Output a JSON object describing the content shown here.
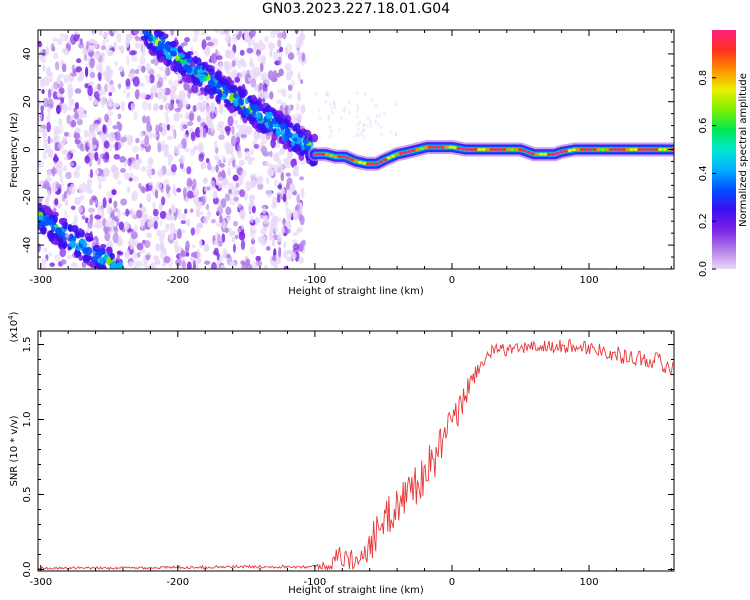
{
  "title": "GN03.2023.227.18.01.G04",
  "chart_data": [
    {
      "type": "heatmap",
      "xlabel": "Height of straight line (km)",
      "ylabel": "Frequency (Hz)",
      "xlim": [
        -302,
        162
      ],
      "ylim": [
        -50,
        50
      ],
      "x_ticks": [
        -300,
        -200,
        -100,
        0,
        100
      ],
      "y_ticks": [
        -40,
        -20,
        0,
        20,
        40
      ],
      "ridge_primary": {
        "x": [
          -100,
          -92,
          -85,
          -78,
          -70,
          -62,
          -55,
          -48,
          -40,
          -32,
          -25,
          -18,
          -10,
          0,
          10,
          20,
          30,
          40,
          50,
          55,
          60,
          65,
          70,
          75,
          80,
          90,
          100,
          110,
          120,
          130,
          140,
          150,
          160
        ],
        "y": [
          -2,
          -2,
          -3,
          -3,
          -5,
          -6,
          -6,
          -4,
          -2,
          -1,
          0,
          1,
          1,
          1,
          0,
          0,
          0,
          0,
          0,
          -1,
          -2,
          -2,
          -2,
          -2,
          -1,
          0,
          0,
          0,
          0,
          0,
          0,
          0,
          0
        ]
      },
      "ridge_descending_upper": {
        "x": [
          -225,
          -200,
          -180,
          -160,
          -140,
          -125,
          -110,
          -100
        ],
        "y": [
          50,
          38,
          30,
          22,
          14,
          9,
          3,
          -1
        ]
      },
      "ridge_descending_lower": {
        "x": [
          -302,
          -285,
          -270,
          -255,
          -240
        ],
        "y": [
          -28,
          -35,
          -40,
          -46,
          -52
        ]
      },
      "colorbar": {
        "label": "Normalized spectral amplitude",
        "ticks": [
          "0.0",
          "0.2",
          "0.4",
          "0.6",
          "0.8"
        ],
        "range": [
          0,
          1
        ],
        "colors": [
          "#e8d8f8",
          "#b07ae8",
          "#7a20e8",
          "#3a10f0",
          "#0050ff",
          "#00b0ff",
          "#00e8d0",
          "#00e850",
          "#80f000",
          "#e8f000",
          "#ff9000",
          "#ff3020",
          "#ff2080"
        ]
      }
    },
    {
      "type": "line",
      "xlabel": "Height of straight line (km)",
      "ylabel": "SNR (10 * v/v)",
      "y_scale_label": "(x10",
      "y_scale_exponent": "4",
      "y_scale_close": ")",
      "xlim": [
        -302,
        162
      ],
      "ylim": [
        -0.01,
        1.59
      ],
      "x_ticks": [
        -300,
        -200,
        -100,
        0,
        100
      ],
      "y_ticks": [
        0.0,
        0.5,
        1.0,
        1.5
      ],
      "y_tick_labels": [
        "0.0",
        "0.5",
        "1.0",
        "1.5"
      ],
      "series_color": "#e8383a",
      "envelope": {
        "x": [
          -302,
          -250,
          -200,
          -150,
          -100,
          -90,
          -85,
          -80,
          -75,
          -70,
          -60,
          -50,
          -40,
          -30,
          -20,
          -15,
          -10,
          -5,
          0,
          5,
          10,
          15,
          20,
          25,
          30,
          40,
          50,
          60,
          70,
          80,
          90,
          100,
          110,
          120,
          130,
          140,
          150,
          162
        ],
        "y": [
          0.01,
          0.01,
          0.015,
          0.02,
          0.02,
          0.03,
          0.08,
          0.1,
          0.07,
          0.08,
          0.18,
          0.32,
          0.45,
          0.55,
          0.65,
          0.72,
          0.8,
          0.9,
          0.98,
          1.06,
          1.18,
          1.28,
          1.36,
          1.42,
          1.46,
          1.47,
          1.48,
          1.49,
          1.49,
          1.49,
          1.5,
          1.48,
          1.47,
          1.44,
          1.42,
          1.41,
          1.4,
          1.33
        ]
      },
      "noise_amplitude": {
        "x": [
          -302,
          -100,
          -85,
          -60,
          -40,
          -20,
          0,
          20,
          40,
          100,
          162
        ],
        "y": [
          0.008,
          0.01,
          0.06,
          0.12,
          0.14,
          0.15,
          0.12,
          0.05,
          0.04,
          0.05,
          0.06
        ]
      }
    }
  ]
}
